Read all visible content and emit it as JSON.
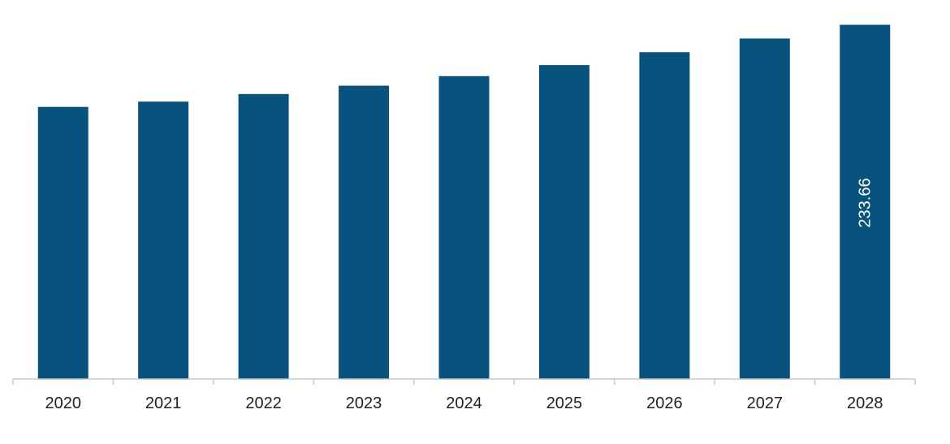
{
  "chart_data": {
    "type": "bar",
    "categories": [
      "2020",
      "2021",
      "2022",
      "2023",
      "2024",
      "2025",
      "2026",
      "2027",
      "2028"
    ],
    "values": [
      179.5,
      183.0,
      188.0,
      193.5,
      199.8,
      207.1,
      215.6,
      224.6,
      233.66
    ],
    "data_labels": [
      "",
      "",
      "",
      "",
      "",
      "",
      "",
      "",
      "233.66"
    ],
    "ylim": [
      0,
      250
    ],
    "bar_color": "#08527e",
    "axis_color": "#c8c8c8",
    "grid": false,
    "legend": "none",
    "title": "",
    "xlabel": "",
    "ylabel": ""
  }
}
